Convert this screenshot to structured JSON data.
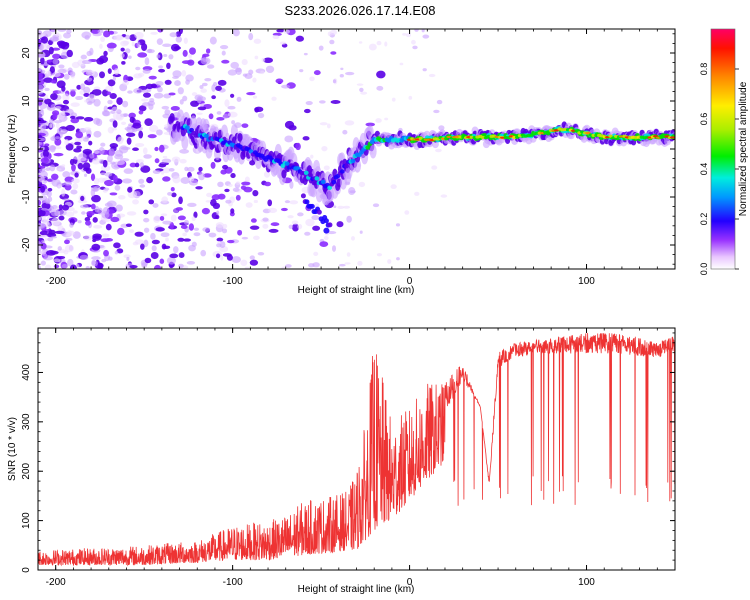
{
  "title": "S233.2026.026.17.14.E08",
  "chart_data": [
    {
      "type": "heatmap",
      "xlabel": "Height of straight line (km)",
      "ylabel": "Frequency (Hz)",
      "xlim": [
        -210,
        150
      ],
      "ylim": [
        -25,
        25
      ],
      "xticks": [
        -200,
        -100,
        0,
        100
      ],
      "yticks": [
        -20,
        -10,
        0,
        10,
        20
      ],
      "colorbar": {
        "label": "Normalized spectral amplitude",
        "range": [
          0,
          0.96
        ],
        "ticks": [
          "0.0",
          "0.2",
          "0.4",
          "0.6",
          "0.8"
        ],
        "tick_values": [
          0.0,
          0.2,
          0.4,
          0.6,
          0.8
        ]
      },
      "ridge": {
        "description_points_x": [
          -130,
          -120,
          -100,
          -80,
          -65,
          -55,
          -45,
          -35,
          -25,
          -20,
          -10,
          0,
          10,
          30,
          60,
          85,
          90,
          110,
          130,
          150
        ],
        "description_points_freq": [
          5,
          3,
          1,
          -2,
          -4,
          -6,
          -8,
          -3,
          0,
          2,
          2,
          2,
          2,
          2.5,
          2.5,
          4,
          4,
          2.5,
          2.5,
          2.5
        ]
      }
    },
    {
      "type": "line",
      "xlabel": "Height of straight line (km)",
      "ylabel": "SNR (10 * v/v)",
      "xlim": [
        -210,
        150
      ],
      "ylim": [
        0,
        490
      ],
      "xticks": [
        -200,
        -100,
        0,
        100
      ],
      "yticks": [
        0,
        100,
        200,
        300,
        400
      ],
      "series": [
        {
          "name": "SNR",
          "color": "#ee3333",
          "envelope_x": [
            -210,
            -180,
            -150,
            -120,
            -100,
            -80,
            -70,
            -60,
            -45,
            -35,
            -30,
            -25,
            -20,
            -10,
            0,
            10,
            20,
            25,
            30,
            40,
            45,
            50,
            60,
            80,
            100,
            120,
            140,
            150
          ],
          "envelope_low": [
            10,
            10,
            10,
            15,
            20,
            20,
            25,
            30,
            35,
            40,
            40,
            60,
            80,
            100,
            140,
            180,
            220,
            250,
            320,
            330,
            150,
            350,
            380,
            380,
            360,
            360,
            370,
            380
          ],
          "envelope_high": [
            40,
            45,
            50,
            60,
            90,
            100,
            110,
            140,
            150,
            160,
            200,
            300,
            470,
            300,
            330,
            380,
            380,
            400,
            420,
            330,
            180,
            440,
            460,
            470,
            480,
            480,
            460,
            480
          ]
        }
      ]
    }
  ]
}
